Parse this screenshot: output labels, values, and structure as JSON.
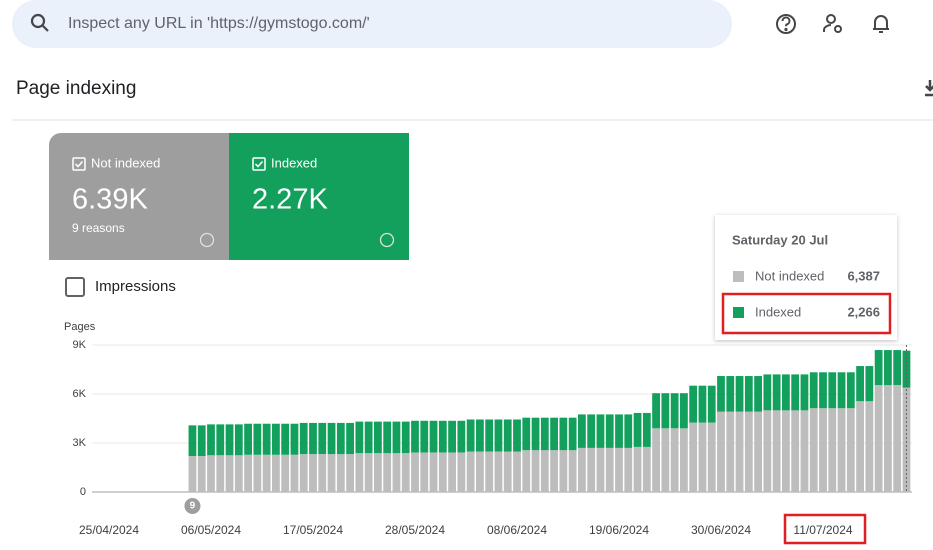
{
  "search": {
    "placeholder": "Inspect any URL in 'https://gymstogo.com/'"
  },
  "page_title": "Page indexing",
  "summary": {
    "not_indexed": {
      "value": "6.39K",
      "note": "9 reasons",
      "color": "#9e9e9e"
    },
    "indexed": {
      "value": "2.27K",
      "color": "#12a05c"
    }
  },
  "impressions_label": "Impressions",
  "tooltip": {
    "title": "Saturday 20 Jul",
    "rows": [
      "6,387",
      "2,266"
    ]
  },
  "chart_data": {
    "type": "stacked-bar",
    "y_label": "Pages",
    "categories": [
      "25/04/2024",
      null,
      null,
      null,
      null,
      null,
      null,
      null,
      null,
      null,
      null,
      "06/05/2024",
      null,
      null,
      null,
      null,
      null,
      null,
      null,
      null,
      null,
      null,
      "17/05/2024",
      null,
      null,
      null,
      null,
      null,
      null,
      null,
      null,
      null,
      null,
      "28/05/2024",
      null,
      null,
      null,
      null,
      null,
      null,
      null,
      null,
      null,
      null,
      "08/06/2024",
      null,
      null,
      null,
      null,
      null,
      null,
      null,
      null,
      null,
      null,
      "19/06/2024",
      null,
      null,
      null,
      null,
      null,
      null,
      null,
      null,
      null,
      null,
      "30/06/2024",
      null,
      null,
      null,
      null,
      null,
      null,
      null,
      null,
      null,
      null,
      "11/07/2024",
      null,
      null,
      null,
      null,
      null,
      null,
      null,
      null,
      null
    ],
    "series": [
      {
        "name": "Not indexed",
        "color": "#bdbdbd",
        "values": [
          null,
          null,
          null,
          null,
          null,
          null,
          null,
          null,
          null,
          2200,
          2200,
          2250,
          2250,
          2250,
          2250,
          2280,
          2280,
          2280,
          2280,
          2280,
          2280,
          2320,
          2320,
          2320,
          2320,
          2320,
          2320,
          2380,
          2380,
          2380,
          2380,
          2380,
          2380,
          2420,
          2420,
          2420,
          2420,
          2420,
          2420,
          2480,
          2480,
          2480,
          2480,
          2480,
          2480,
          2560,
          2560,
          2560,
          2560,
          2560,
          2560,
          2700,
          2700,
          2700,
          2700,
          2700,
          2700,
          2760,
          2760,
          3900,
          3900,
          3900,
          3900,
          4250,
          4250,
          4250,
          4920,
          4920,
          4920,
          4920,
          4920,
          5000,
          5000,
          5000,
          5000,
          5000,
          5130,
          5130,
          5130,
          5130,
          5130,
          5560,
          5560,
          6550,
          6550,
          6550,
          6387
        ]
      },
      {
        "name": "Indexed",
        "color": "#12a05c",
        "values": [
          null,
          null,
          null,
          null,
          null,
          null,
          null,
          null,
          null,
          1880,
          1880,
          1890,
          1890,
          1890,
          1890,
          1900,
          1900,
          1900,
          1900,
          1900,
          1900,
          1910,
          1910,
          1910,
          1910,
          1910,
          1910,
          1930,
          1930,
          1930,
          1930,
          1930,
          1930,
          1940,
          1940,
          1940,
          1940,
          1940,
          1940,
          1960,
          1960,
          1960,
          1960,
          1960,
          1960,
          1990,
          1990,
          1990,
          1990,
          1990,
          1990,
          2050,
          2050,
          2050,
          2050,
          2050,
          2050,
          2080,
          2080,
          2150,
          2150,
          2150,
          2150,
          2260,
          2260,
          2260,
          2180,
          2180,
          2180,
          2180,
          2180,
          2200,
          2200,
          2200,
          2200,
          2200,
          2200,
          2200,
          2200,
          2200,
          2200,
          2150,
          2150,
          2140,
          2140,
          2140,
          2266
        ]
      }
    ],
    "ylim": [
      0,
      9000
    ],
    "yticks": [
      0,
      {
        "value": 3000,
        "label": "3K"
      },
      {
        "value": 6000,
        "label": "6K"
      },
      {
        "value": 9000,
        "label": "9K"
      }
    ],
    "grid": true,
    "annotation": "9"
  }
}
